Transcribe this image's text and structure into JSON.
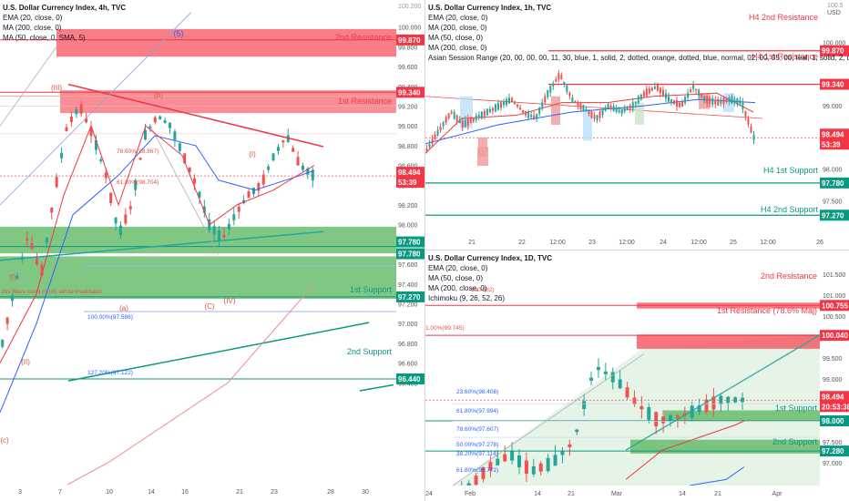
{
  "colors": {
    "up": "#26a69a",
    "down": "#ef5350",
    "resist": "#f23645",
    "support": "#089981",
    "zoneRed": "#f7525f",
    "zoneGreen": "#4caf50",
    "ema": "#f23645",
    "ma50": "#2962ff",
    "ma200": "#e68c8c",
    "white": "#ffffff"
  },
  "left": {
    "legend": {
      "title": "U.S. Dollar Currency Index, 4h, TVC",
      "ema": "EMA (20, close, 0)",
      "ma200": "MA (200, close, 0)",
      "ma50": "MA (50, close, 0, SMA, 5)"
    },
    "zones": {
      "resist2": "2nd Resistance",
      "resist1": "1st Resistance",
      "support1": "1st Support",
      "support2": "2nd Support"
    },
    "axis": {
      "ticks": [
        "100.000",
        "99.800",
        "99.600",
        "99.400",
        "99.200",
        "99.000",
        "98.800",
        "98.600",
        "98.400",
        "98.200",
        "98.000",
        "97.800",
        "97.600",
        "97.400",
        "97.200",
        "97.000",
        "96.800",
        "96.600",
        "96.400"
      ],
      "top_cut": "100.200"
    },
    "xlabels": [
      "3",
      "7",
      "10",
      "14",
      "16",
      "21",
      "23",
      "28",
      "30"
    ],
    "badges": {
      "r2": "99.870",
      "r1": "99.340",
      "price": "98.494",
      "time": "53:39",
      "s1a": "97.780",
      "s1b": "97.780",
      "s2": "97.270",
      "s3": "96.440"
    },
    "annotations": {
      "wave_top": "(5)",
      "wave_b": "(b)",
      "wave_iii": "(III)",
      "wave_i_left": "(I)",
      "wave_ii": "(II)",
      "wave_a": "(a)",
      "wave_c": "(C)",
      "wave_iv": "(IV)",
      "wave_i_small": "(I)",
      "wave_c_bottom": "(c)",
      "fib_786": "78.60%(98.867)",
      "fib_618": "61.80%(98.704)",
      "fib_100": "100.00%(97.586)",
      "fib_1272": "127.20%(97.122)",
      "invalid_note": "this Wave count (I)-(III) will be invalidated"
    }
  },
  "rtop": {
    "legend": {
      "title": "U.S. Dollar Currency Index, 1h, TVC",
      "ema": "EMA (20, close, 0)",
      "ma200": "MA (200, close, 0)",
      "ma50": "MA (50, close, 0)",
      "ma200b": "MA (200, close, 0)",
      "session": "Asian Session Range (20, 00, 00, 00, 11, 30, blue, 1, solid, 2, dotted, orange, dotted, blue, normal, 02, 00, 05, 00, teal, 1, solid, 2, dotted, teal, dotted, teal, normal, 08,"
    },
    "labels": {
      "h4r2": "H4 2nd Resistance",
      "h4r1": "H4 1st Resistance",
      "h4s1": "H4 1st Support",
      "h4s2": "H4 2nd Support"
    },
    "axis": {
      "ticks": [
        "100.000",
        "99.400",
        "99.000",
        "98.000",
        "97.500"
      ],
      "usd": "USD",
      "top": "100.5"
    },
    "badges": {
      "r2": "99.870",
      "r1": "99.340",
      "price": "98.494",
      "time": "53:39",
      "s1": "97.780",
      "s2": "97.270"
    },
    "xlabels": [
      "21",
      "22",
      "12:00",
      "23",
      "12:00",
      "24",
      "12:00",
      "25",
      "12:00",
      "26"
    ]
  },
  "rbot": {
    "legend": {
      "title": "U.S. Dollar Currency Index, 1D, TVC",
      "ema": "EMA (20, close, 0)",
      "ma50": "MA (50, close, 0)",
      "ma200": "MA (200, close, 0)",
      "ichimoku": "Ichimoku (9, 26, 52, 26)"
    },
    "labels": {
      "r2": "2nd Resistance",
      "r1": "1st Resistance (78.6% Maj)",
      "s1": "1st Support",
      "s2": "2nd Support"
    },
    "axis": {
      "ticks": [
        "101.500",
        "101.000",
        "100.500",
        "100.000",
        "99.500",
        "99.000",
        "98.500",
        "98.000",
        "97.500",
        "97.000"
      ]
    },
    "badges": {
      "r2": "100.755",
      "r1": "100.040",
      "price": "98.494",
      "time": "20:53:38",
      "s1": "98.000",
      "s2": "97.280"
    },
    "fibs": {
      "f1": "100.582)",
      "f2": "1.00%(99.745)",
      "f3": "23.60%(98.408)",
      "f4": "61.80%(97.994)",
      "f5": "78.60%(97.607)",
      "f6": "50.00%(97.278)",
      "f7": "38.20%(97.114)",
      "f8": "61.80%(96.772)"
    },
    "xlabels": [
      "24",
      "Feb",
      "14",
      "21",
      "Mar",
      "14",
      "21",
      "Apr"
    ]
  },
  "chart_data": [
    {
      "type": "line",
      "title": "U.S. Dollar Currency Index, 4h, TVC",
      "ylim": [
        96.3,
        100.2
      ],
      "levels": [
        {
          "name": "2nd Resistance",
          "value": 99.87
        },
        {
          "name": "1st Resistance",
          "value": 99.34
        },
        {
          "name": "1st Support",
          "value": 97.78
        },
        {
          "name": "2nd Support",
          "value": 97.27
        },
        {
          "name": "",
          "value": 96.44
        }
      ],
      "last_price": 98.494
    },
    {
      "type": "line",
      "title": "U.S. Dollar Currency Index, 1h, TVC",
      "levels": [
        {
          "name": "H4 2nd Resistance",
          "value": 99.87
        },
        {
          "name": "H4 1st Resistance",
          "value": 99.34
        },
        {
          "name": "H4 1st Support",
          "value": 97.78
        },
        {
          "name": "H4 2nd Support",
          "value": 97.27
        }
      ],
      "last_price": 98.494
    },
    {
      "type": "line",
      "title": "U.S. Dollar Currency Index, 1D, TVC",
      "levels": [
        {
          "name": "2nd Resistance",
          "value": 100.755
        },
        {
          "name": "1st Resistance (78.6% Maj)",
          "value": 100.04
        },
        {
          "name": "1st Support",
          "value": 98.0
        },
        {
          "name": "2nd Support",
          "value": 97.28
        }
      ],
      "last_price": 98.494
    }
  ]
}
